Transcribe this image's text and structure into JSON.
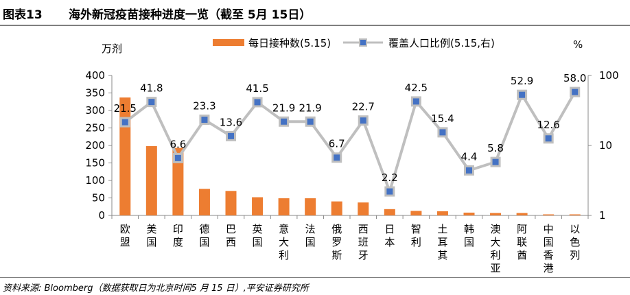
{
  "header": {
    "figure_label": "图表13",
    "title": "海外新冠疫苗接种进度一览（截至 5月 15日）"
  },
  "footer": {
    "source": "资料来源: Bloomberg（数据获取日为北京时间5 月 15 日）,平安证券研究所"
  },
  "colors": {
    "bar": "#ed7d31",
    "line": "#bfbfbf",
    "marker": "#4472c4",
    "axis": "#888888"
  },
  "chart_data": {
    "type": "bar+line",
    "categories": [
      "欧盟",
      "美国",
      "印度",
      "德国",
      "巴西",
      "英国",
      "意大利",
      "法国",
      "俄罗斯",
      "西班牙",
      "日本",
      "智利",
      "土耳其",
      "韩国",
      "澳大利亚",
      "阿联酋",
      "中国香港",
      "以色列"
    ],
    "left_axis_unit": "万剂",
    "right_axis_unit": "%",
    "left_ylim": [
      0,
      400
    ],
    "left_ticks": [
      "0",
      "50",
      "100",
      "150",
      "200",
      "250",
      "300",
      "350",
      "400"
    ],
    "right_scale": "log",
    "right_ylim": [
      1,
      100
    ],
    "right_ticks": [
      "1",
      "10",
      "100"
    ],
    "series": [
      {
        "name": "每日接种数(5.15)",
        "type": "bar",
        "axis": "left",
        "values": [
          337,
          198,
          193,
          76,
          70,
          52,
          49,
          49,
          40,
          37,
          18,
          13,
          12,
          8,
          7,
          7,
          3,
          3
        ]
      },
      {
        "name": "覆盖人口比例(5.15,右)",
        "type": "line",
        "axis": "right",
        "values": [
          21.5,
          41.8,
          6.6,
          23.3,
          13.6,
          41.5,
          21.9,
          21.9,
          6.7,
          22.7,
          2.2,
          42.5,
          15.4,
          4.4,
          5.8,
          52.9,
          12.6,
          58.0
        ],
        "labels": [
          "21.5",
          "41.8",
          "6.6",
          "23.3",
          "13.6",
          "41.5",
          "21.9",
          "21.9",
          "6.7",
          "22.7",
          "2.2",
          "42.5",
          "15.4",
          "4.4",
          "5.8",
          "52.9",
          "12.6",
          "58.0"
        ]
      }
    ]
  }
}
